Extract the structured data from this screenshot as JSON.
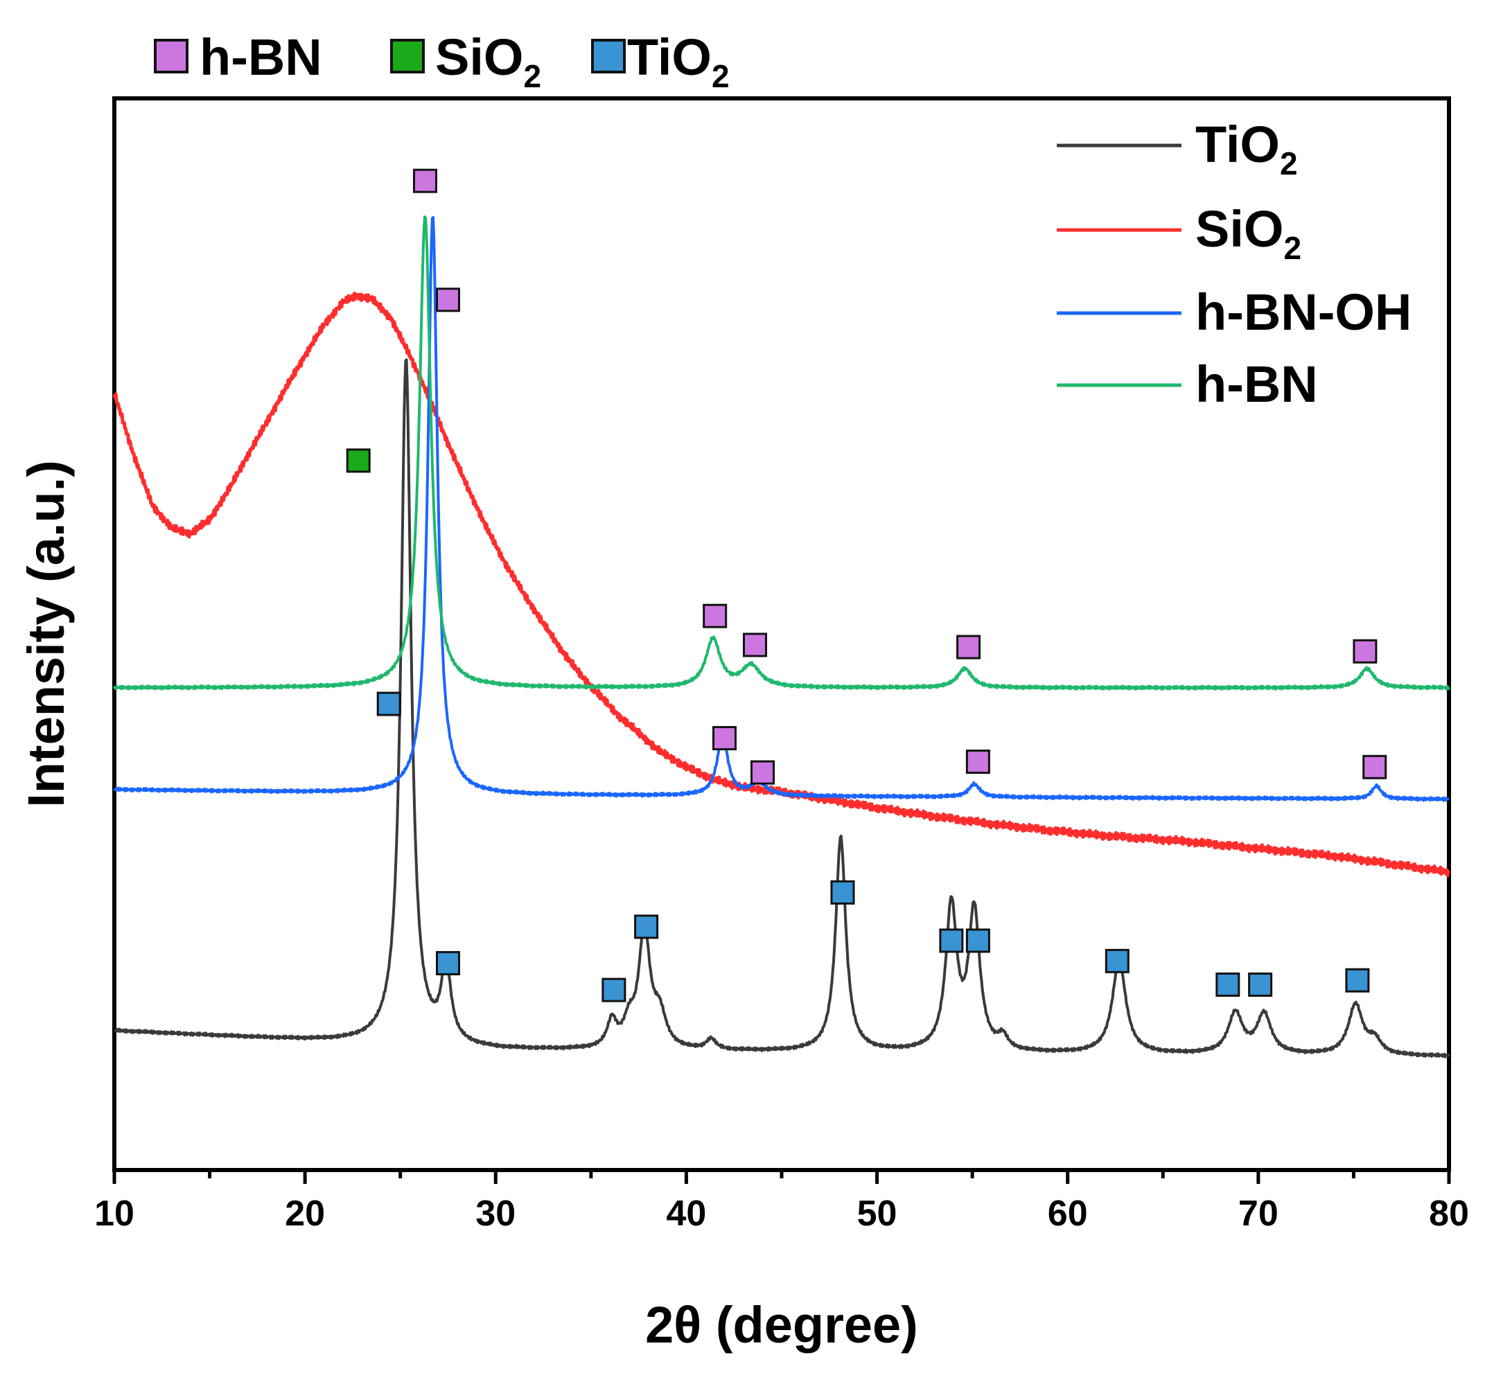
{
  "chart_data": {
    "type": "line",
    "xlabel": "2θ (degree)",
    "ylabel": "Intensity (a.u.)",
    "xlim": [
      10,
      80
    ],
    "ylim": [
      0,
      100
    ],
    "x_ticks": [
      "10",
      "20",
      "30",
      "40",
      "50",
      "60",
      "70",
      "80"
    ],
    "y_ticks_shown": false,
    "legend": {
      "placement": "top-right",
      "entries": [
        {
          "name": "TiO",
          "sub": "2",
          "color": "#3a3a3a"
        },
        {
          "name": "SiO",
          "sub": "2",
          "color": "#ff2d2d"
        },
        {
          "name": "h-BN-OH",
          "sub": "",
          "color": "#1a66ff"
        },
        {
          "name": "h-BN",
          "sub": "",
          "color": "#1fb86e"
        }
      ]
    },
    "marker_legend": {
      "placement": "top-left-above",
      "entries": [
        {
          "name": "h-BN",
          "sub": "",
          "color": "#cc77e0"
        },
        {
          "name": "SiO",
          "sub": "2",
          "color": "#1aaa1a"
        },
        {
          "name": "TiO",
          "sub": "2",
          "color": "#3a93d2"
        }
      ]
    },
    "series": [
      {
        "name": "TiO2",
        "color": "#3a3a3a",
        "baseline": [
          [
            10,
            13.0
          ],
          [
            30,
            11.2
          ],
          [
            80,
            10.6
          ]
        ],
        "peaks": [
          {
            "x": 25.3,
            "h": 64,
            "w": 0.32
          },
          {
            "x": 27.4,
            "h": 7,
            "w": 0.3
          },
          {
            "x": 36.1,
            "h": 2.5,
            "w": 0.3
          },
          {
            "x": 37.0,
            "h": 2.2,
            "w": 0.35
          },
          {
            "x": 37.8,
            "h": 11,
            "w": 0.35
          },
          {
            "x": 38.6,
            "h": 3,
            "w": 0.4
          },
          {
            "x": 41.3,
            "h": 1.0,
            "w": 0.3
          },
          {
            "x": 48.1,
            "h": 20,
            "w": 0.32
          },
          {
            "x": 53.9,
            "h": 13.5,
            "w": 0.35
          },
          {
            "x": 55.1,
            "h": 13,
            "w": 0.35
          },
          {
            "x": 56.6,
            "h": 1.2,
            "w": 0.3
          },
          {
            "x": 62.7,
            "h": 8.7,
            "w": 0.42
          },
          {
            "x": 68.8,
            "h": 3.8,
            "w": 0.45
          },
          {
            "x": 70.3,
            "h": 3.7,
            "w": 0.45
          },
          {
            "x": 75.1,
            "h": 4.7,
            "w": 0.45
          },
          {
            "x": 76.1,
            "h": 1.3,
            "w": 0.4
          }
        ]
      },
      {
        "name": "SiO2",
        "color": "#ff2d2d",
        "points": [
          [
            10,
            72.5
          ],
          [
            11,
            66.8
          ],
          [
            12,
            62.0
          ],
          [
            13,
            59.9
          ],
          [
            14,
            59.4
          ],
          [
            15,
            60.7
          ],
          [
            16,
            63.5
          ],
          [
            17,
            66.7
          ],
          [
            18,
            69.8
          ],
          [
            19,
            73.0
          ],
          [
            20,
            76.0
          ],
          [
            21,
            78.9
          ],
          [
            22,
            81.0
          ],
          [
            22.7,
            81.6
          ],
          [
            23.5,
            81.3
          ],
          [
            24.5,
            79.5
          ],
          [
            25.5,
            76.0
          ],
          [
            26.5,
            72.1
          ],
          [
            27.5,
            67.8
          ],
          [
            28.5,
            63.8
          ],
          [
            29.5,
            60.0
          ],
          [
            30.5,
            56.6
          ],
          [
            31.5,
            53.7
          ],
          [
            32.5,
            51.0
          ],
          [
            33.5,
            48.4
          ],
          [
            34.5,
            46.1
          ],
          [
            35.5,
            44.2
          ],
          [
            36.5,
            42.3
          ],
          [
            37.5,
            40.8
          ],
          [
            38.5,
            39.2
          ],
          [
            40,
            37.6
          ],
          [
            41.5,
            36.4
          ],
          [
            43,
            35.7
          ],
          [
            45,
            35.3
          ],
          [
            47,
            34.7
          ],
          [
            50,
            33.8
          ],
          [
            53,
            33.0
          ],
          [
            56,
            32.3
          ],
          [
            59,
            31.7
          ],
          [
            62,
            31.2
          ],
          [
            66,
            30.7
          ],
          [
            70,
            30.0
          ],
          [
            74,
            29.3
          ],
          [
            78,
            28.3
          ],
          [
            80,
            27.8
          ]
        ]
      },
      {
        "name": "h-BN-OH",
        "color": "#1a66ff",
        "baseline": [
          [
            10,
            35.5
          ],
          [
            30,
            35.0
          ],
          [
            80,
            34.6
          ]
        ],
        "peaks": [
          {
            "x": 26.7,
            "h": 54,
            "w": 0.3
          },
          {
            "x": 41.9,
            "h": 5.7,
            "w": 0.33
          },
          {
            "x": 43.8,
            "h": 1.2,
            "w": 0.5
          },
          {
            "x": 55.1,
            "h": 1.2,
            "w": 0.35
          },
          {
            "x": 76.2,
            "h": 1.2,
            "w": 0.3
          }
        ]
      },
      {
        "name": "h-BN",
        "color": "#1fb86e",
        "baseline": [
          [
            10,
            45.0
          ],
          [
            80,
            45.0
          ]
        ],
        "peaks": [
          {
            "x": 26.3,
            "h": 44.0,
            "w": 0.36
          },
          {
            "x": 41.4,
            "h": 4.5,
            "w": 0.45
          },
          {
            "x": 43.4,
            "h": 2.0,
            "w": 0.6
          },
          {
            "x": 54.6,
            "h": 1.8,
            "w": 0.45
          },
          {
            "x": 75.7,
            "h": 1.8,
            "w": 0.45
          }
        ]
      }
    ],
    "peak_markers": [
      {
        "phase": "h-BN",
        "color": "#cc77e0",
        "x": 26.3,
        "y": 92.3
      },
      {
        "phase": "h-BN",
        "color": "#cc77e0",
        "x": 27.5,
        "y": 81.2
      },
      {
        "phase": "h-BN",
        "color": "#cc77e0",
        "x": 41.5,
        "y": 51.7
      },
      {
        "phase": "h-BN",
        "color": "#cc77e0",
        "x": 43.6,
        "y": 49.0
      },
      {
        "phase": "h-BN",
        "color": "#cc77e0",
        "x": 54.8,
        "y": 48.8
      },
      {
        "phase": "h-BN",
        "color": "#cc77e0",
        "x": 75.6,
        "y": 48.4
      },
      {
        "phase": "h-BN",
        "color": "#cc77e0",
        "x": 42.0,
        "y": 40.3
      },
      {
        "phase": "h-BN",
        "color": "#cc77e0",
        "x": 44.0,
        "y": 37.1
      },
      {
        "phase": "h-BN",
        "color": "#cc77e0",
        "x": 55.3,
        "y": 38.1
      },
      {
        "phase": "h-BN",
        "color": "#cc77e0",
        "x": 76.1,
        "y": 37.6
      },
      {
        "phase": "SiO2",
        "color": "#1aaa1a",
        "x": 22.8,
        "y": 66.2
      },
      {
        "phase": "TiO2",
        "color": "#3a93d2",
        "x": 24.4,
        "y": 43.5
      },
      {
        "phase": "TiO2",
        "color": "#3a93d2",
        "x": 27.5,
        "y": 19.3
      },
      {
        "phase": "TiO2",
        "color": "#3a93d2",
        "x": 36.2,
        "y": 16.8
      },
      {
        "phase": "TiO2",
        "color": "#3a93d2",
        "x": 37.9,
        "y": 22.7
      },
      {
        "phase": "TiO2",
        "color": "#3a93d2",
        "x": 48.2,
        "y": 25.9
      },
      {
        "phase": "TiO2",
        "color": "#3a93d2",
        "x": 53.9,
        "y": 21.4
      },
      {
        "phase": "TiO2",
        "color": "#3a93d2",
        "x": 55.3,
        "y": 21.4
      },
      {
        "phase": "TiO2",
        "color": "#3a93d2",
        "x": 62.6,
        "y": 19.5
      },
      {
        "phase": "TiO2",
        "color": "#3a93d2",
        "x": 68.4,
        "y": 17.3
      },
      {
        "phase": "TiO2",
        "color": "#3a93d2",
        "x": 70.1,
        "y": 17.3
      },
      {
        "phase": "TiO2",
        "color": "#3a93d2",
        "x": 75.2,
        "y": 17.7
      }
    ]
  }
}
